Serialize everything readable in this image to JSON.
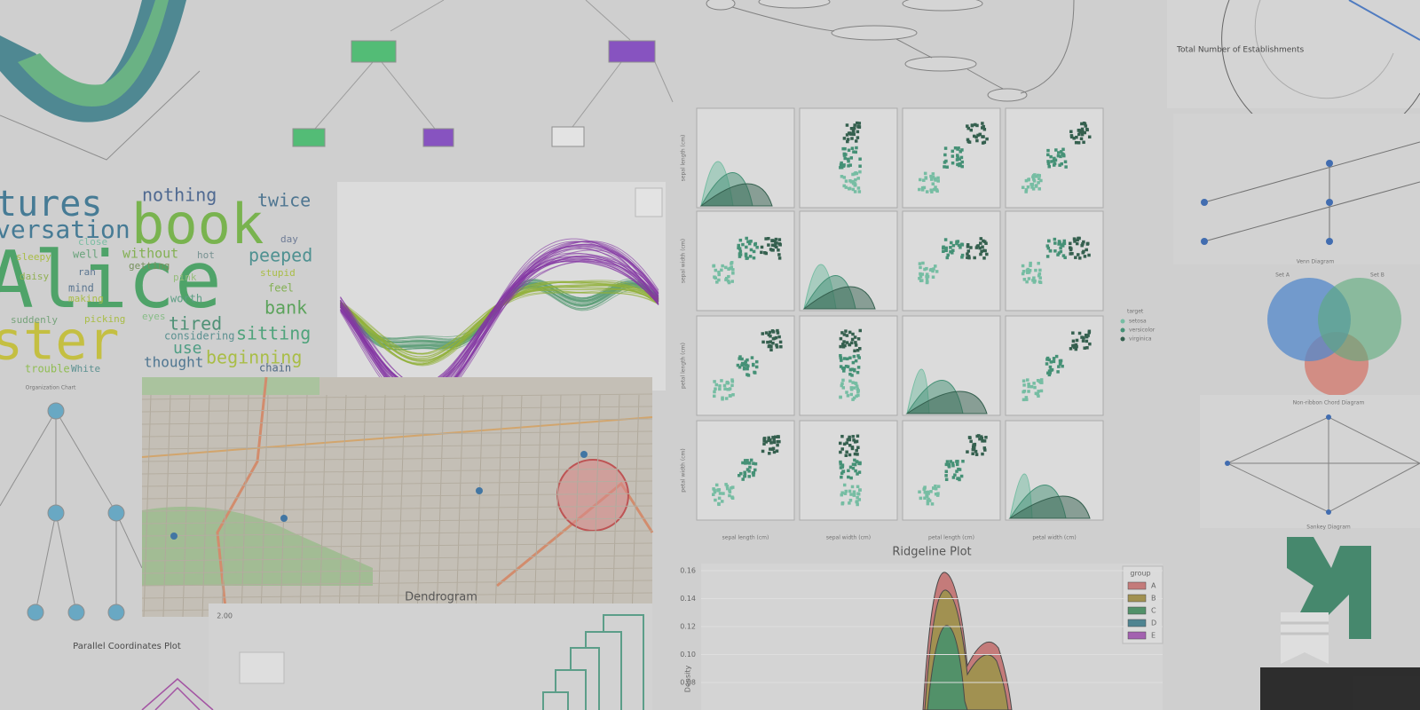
{
  "panels": {
    "wordcloud": {
      "words": [
        "tures",
        "book",
        "nothing",
        "twice",
        "versation",
        "Alice",
        "ster",
        "peeped",
        "bank",
        "sitting",
        "tired",
        "beginning",
        "thought",
        "use",
        "chain",
        "close",
        "day",
        "without",
        "hot",
        "sleepy",
        "well",
        "daisy",
        "ran",
        "mind",
        "pink",
        "stupid",
        "feel",
        "worth",
        "making",
        "getting",
        "suddenly",
        "picking",
        "eyes",
        "considering",
        "trouble",
        "White"
      ]
    },
    "org_chart": {
      "title": "Organization Chart"
    },
    "radar": {
      "label": "Total Number of Establishments"
    },
    "pairplot": {
      "legend_title": "target",
      "legend": [
        "setosa",
        "versicolor",
        "virginica"
      ],
      "ylabels": [
        "sepal length (cm)",
        "sepal width (cm)",
        "petal length (cm)",
        "petal width (cm)"
      ],
      "xlabels": [
        "sepal length (cm)",
        "sepal width (cm)",
        "petal length (cm)",
        "petal width (cm)"
      ]
    },
    "ridgeline": {
      "title": "Ridgeline Plot",
      "ylabel": "Density",
      "yticks": [
        "0.16",
        "0.14",
        "0.12",
        "0.10",
        "0.08"
      ],
      "legend_title": "group",
      "groups": [
        "A",
        "B",
        "C",
        "D",
        "E"
      ]
    },
    "dendrogram": {
      "title": "Dendrogram",
      "ytick": "2.00"
    },
    "parallel": {
      "title": "Parallel Coordinates Plot"
    },
    "venn": {
      "title": "Venn Diagram",
      "sets": [
        "Set A",
        "Set B"
      ]
    },
    "chord": {
      "title": "Non-ribbon Chord Diagram"
    },
    "sankey": {
      "title": "Sankey Diagram"
    }
  }
}
